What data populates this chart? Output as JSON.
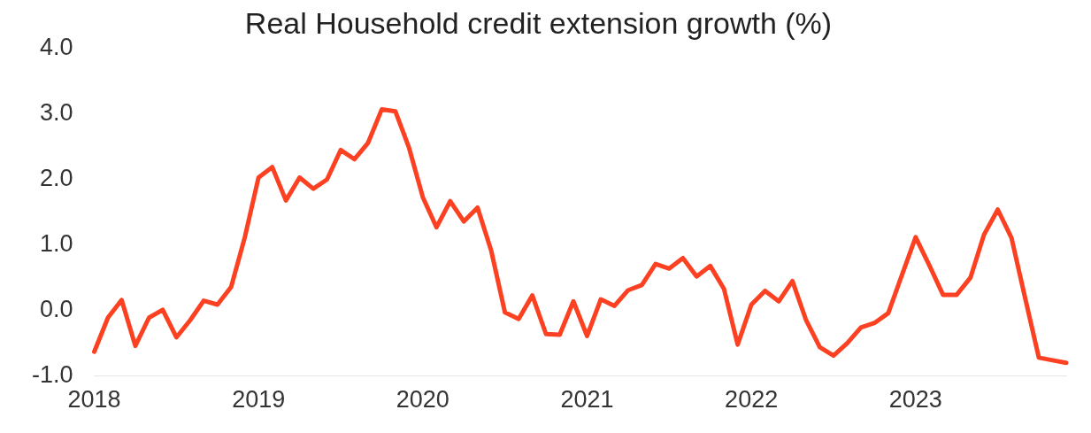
{
  "chart_data": {
    "type": "line",
    "title": "Real Household credit extension growth (%)",
    "x": [
      "2018-01",
      "2018-02",
      "2018-03",
      "2018-04",
      "2018-05",
      "2018-06",
      "2018-07",
      "2018-08",
      "2018-09",
      "2018-10",
      "2018-11",
      "2018-12",
      "2019-01",
      "2019-02",
      "2019-03",
      "2019-04",
      "2019-05",
      "2019-06",
      "2019-07",
      "2019-08",
      "2019-09",
      "2019-10",
      "2019-11",
      "2019-12",
      "2020-01",
      "2020-02",
      "2020-03",
      "2020-04",
      "2020-05",
      "2020-06",
      "2020-07",
      "2020-08",
      "2020-09",
      "2020-10",
      "2020-11",
      "2020-12",
      "2021-01",
      "2021-02",
      "2021-03",
      "2021-04",
      "2021-05",
      "2021-06",
      "2021-07",
      "2021-08",
      "2021-09",
      "2021-10",
      "2021-11",
      "2021-12",
      "2022-01",
      "2022-02",
      "2022-03",
      "2022-04",
      "2022-05",
      "2022-06",
      "2022-07",
      "2022-08",
      "2022-09",
      "2022-10",
      "2022-11",
      "2022-12",
      "2023-01",
      "2023-02",
      "2023-03",
      "2023-04",
      "2023-05",
      "2023-06",
      "2023-07",
      "2023-08",
      "2023-09",
      "2023-10",
      "2023-11",
      "2023-12"
    ],
    "series": [
      {
        "color": "#fc4122",
        "values": [
          -0.63,
          -0.11,
          0.16,
          -0.54,
          -0.11,
          0.01,
          -0.41,
          -0.15,
          0.15,
          0.09,
          0.36,
          1.12,
          2.03,
          2.19,
          1.68,
          2.03,
          1.86,
          2.0,
          2.45,
          2.31,
          2.56,
          3.07,
          3.04,
          2.48,
          1.73,
          1.27,
          1.67,
          1.36,
          1.57,
          0.91,
          -0.03,
          -0.13,
          0.23,
          -0.36,
          -0.37,
          0.14,
          -0.39,
          0.17,
          0.07,
          0.31,
          0.39,
          0.71,
          0.64,
          0.8,
          0.52,
          0.68,
          0.33,
          -0.52,
          0.09,
          0.3,
          0.14,
          0.45,
          -0.15,
          -0.56,
          -0.69,
          -0.5,
          -0.26,
          -0.19,
          -0.04,
          0.54,
          1.12,
          0.69,
          0.24,
          0.24,
          0.5,
          1.16,
          1.54,
          1.11,
          0.19,
          -0.72,
          -0.76,
          -0.8
        ]
      }
    ],
    "xlim": [
      "2018-01",
      "2023-12"
    ],
    "xticks": [
      "2018",
      "2019",
      "2020",
      "2021",
      "2022",
      "2023"
    ],
    "ylim": [
      -1.0,
      4.0
    ],
    "yticks": [
      {
        "value": -1,
        "label": "-1.0"
      },
      {
        "value": 0,
        "label": "0.0"
      },
      {
        "value": 1,
        "label": "1.0"
      },
      {
        "value": 2,
        "label": "2.0"
      },
      {
        "value": 3,
        "label": "3.0"
      },
      {
        "value": 4,
        "label": "4.0"
      }
    ],
    "grid": false,
    "legend": false,
    "marker": "none",
    "line_style": "solid"
  }
}
